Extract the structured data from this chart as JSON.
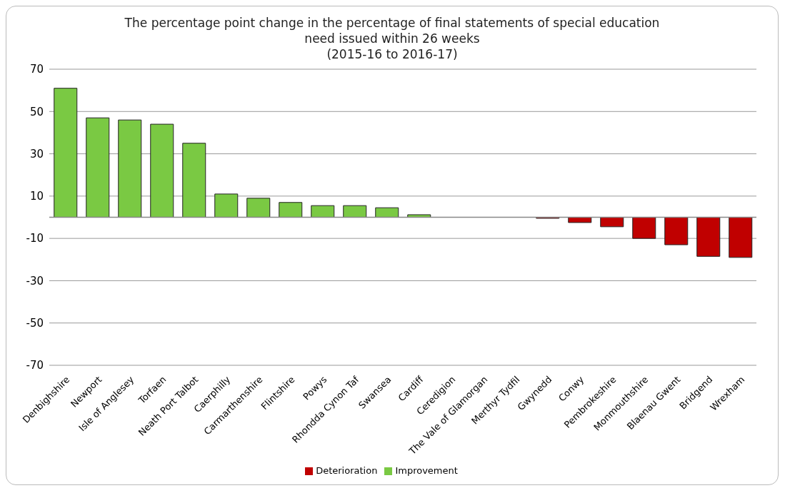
{
  "chart_data": {
    "type": "bar",
    "title": "The percentage point change in the percentage of final statements of special education need issued within 26 weeks\n(2015-16 to 2016-17)",
    "categories": [
      "Denbighshire",
      "Newport",
      "Isle of Anglesey",
      "Torfaen",
      "Neath Port Talbot",
      "Caerphilly",
      "Carmarthenshire",
      "Flintshire",
      "Powys",
      "Rhondda Cynon Taf",
      "Swansea",
      "Cardiff",
      "Ceredigion",
      "The Vale of Glamorgan",
      "Merthyr Tydfil",
      "Gwynedd",
      "Conwy",
      "Pembrokeshire",
      "Monmouthshire",
      "Blaenau Gwent",
      "Bridgend",
      "Wrexham"
    ],
    "series": [
      {
        "name": "Improvement",
        "color": "#7ac943",
        "values": [
          61,
          47,
          46,
          44,
          35,
          11,
          9,
          7,
          5.5,
          5.5,
          4.5,
          1.2,
          null,
          null,
          null,
          null,
          null,
          null,
          null,
          null,
          null,
          null
        ]
      },
      {
        "name": "Deterioration",
        "color": "#c00000",
        "values": [
          null,
          null,
          null,
          null,
          null,
          null,
          null,
          null,
          null,
          null,
          null,
          null,
          null,
          null,
          null,
          -0.5,
          -2.5,
          -4.5,
          -10,
          -13,
          -18.5,
          -19
        ]
      }
    ],
    "stacked": true,
    "ylim": [
      -70,
      70
    ],
    "yticks": [
      -70,
      -50,
      -30,
      -10,
      10,
      30,
      50,
      70
    ],
    "grid": "y",
    "legend": "bottom"
  }
}
